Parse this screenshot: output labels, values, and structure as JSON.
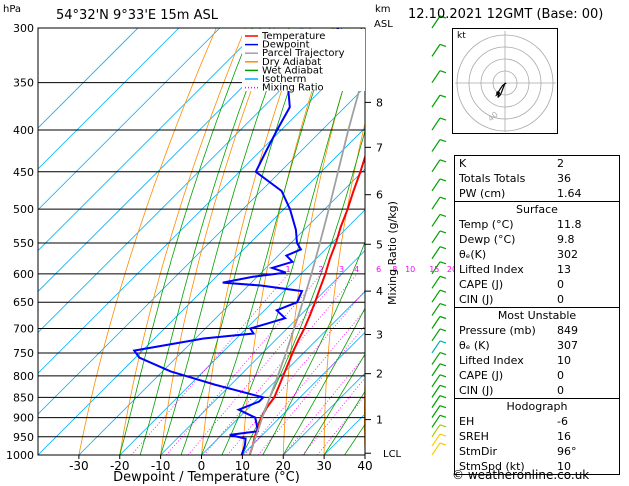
{
  "header": {
    "location": "54°32'N  9°33'E  15m  ASL",
    "pressure_unit": "hPa",
    "km_unit": "km",
    "asl_unit": "ASL",
    "datetime": "12.10.2021  12GMT  (Base: 00)"
  },
  "legend": {
    "items": [
      {
        "label": "Temperature",
        "color": "#ff0000",
        "style": "solid"
      },
      {
        "label": "Dewpoint",
        "color": "#0000ff",
        "style": "solid"
      },
      {
        "label": "Parcel Trajectory",
        "color": "#a0a0a0",
        "style": "solid"
      },
      {
        "label": "Dry Adiabat",
        "color": "#ff8c00",
        "style": "solid"
      },
      {
        "label": "Wet Adiabat",
        "color": "#00a000",
        "style": "solid"
      },
      {
        "label": "Isotherm",
        "color": "#00b0ff",
        "style": "solid"
      },
      {
        "label": "Mixing Ratio",
        "color": "#ff00ff",
        "style": "dotted"
      }
    ]
  },
  "chart_data": {
    "type": "line",
    "xlabel": "Dewpoint / Temperature (°C)",
    "ylabel_right": "Mixing Ratio (g/kg)",
    "x_ticks": [
      -30,
      -20,
      -10,
      0,
      10,
      20,
      30,
      40
    ],
    "xlim": [
      -40,
      40
    ],
    "pressure_ticks": [
      300,
      350,
      400,
      450,
      500,
      550,
      600,
      650,
      700,
      750,
      800,
      850,
      900,
      950,
      1000
    ],
    "ylim_hpa": [
      1000,
      300
    ],
    "y_scale": "log",
    "km_ticks": [
      {
        "label": "8",
        "p": 370
      },
      {
        "label": "7",
        "p": 420
      },
      {
        "label": "6",
        "p": 480
      },
      {
        "label": "5",
        "p": 552
      },
      {
        "label": "4",
        "p": 630
      },
      {
        "label": "3",
        "p": 712
      },
      {
        "label": "2",
        "p": 795
      },
      {
        "label": "1",
        "p": 905
      }
    ],
    "lcl": {
      "label": "LCL",
      "p": 995
    },
    "mixing_ratio_labels": [
      "1",
      "2",
      "3",
      "4",
      "6",
      "8",
      "10",
      "15",
      "20",
      "25"
    ],
    "series": [
      {
        "name": "Temperature",
        "color": "#ff0000",
        "points": [
          [
            1000,
            11.8
          ],
          [
            975,
            10.3
          ],
          [
            950,
            8.6
          ],
          [
            925,
            7.0
          ],
          [
            900,
            5.5
          ],
          [
            875,
            4.4
          ],
          [
            850,
            3.7
          ],
          [
            825,
            2.2
          ],
          [
            800,
            0.6
          ],
          [
            775,
            -1.0
          ],
          [
            750,
            -2.7
          ],
          [
            725,
            -4.3
          ],
          [
            700,
            -5.8
          ],
          [
            675,
            -7.6
          ],
          [
            650,
            -9.6
          ],
          [
            625,
            -11.8
          ],
          [
            600,
            -14.0
          ],
          [
            575,
            -16.6
          ],
          [
            550,
            -19.0
          ],
          [
            525,
            -21.8
          ],
          [
            500,
            -24.4
          ],
          [
            475,
            -27.4
          ],
          [
            450,
            -30.4
          ],
          [
            425,
            -33.8
          ],
          [
            400,
            -37.2
          ],
          [
            375,
            -41.0
          ],
          [
            350,
            -44.6
          ],
          [
            325,
            -48.7
          ],
          [
            300,
            -53.0
          ]
        ]
      },
      {
        "name": "Dewpoint",
        "color": "#0000ff",
        "points": [
          [
            1000,
            9.8
          ],
          [
            975,
            8.4
          ],
          [
            955,
            6.8
          ],
          [
            945,
            2.0
          ],
          [
            935,
            8.0
          ],
          [
            900,
            4.0
          ],
          [
            880,
            -2.0
          ],
          [
            860,
            1.0
          ],
          [
            850,
            1.0
          ],
          [
            820,
            -14.0
          ],
          [
            790,
            -28.0
          ],
          [
            760,
            -39.0
          ],
          [
            745,
            -42.0
          ],
          [
            720,
            -28.0
          ],
          [
            710,
            -17.0
          ],
          [
            700,
            -19.0
          ],
          [
            690,
            -16.0
          ],
          [
            680,
            -13.0
          ],
          [
            665,
            -17.0
          ],
          [
            650,
            -14.0
          ],
          [
            630,
            -15.5
          ],
          [
            620,
            -27.0
          ],
          [
            615,
            -37.0
          ],
          [
            605,
            -31.0
          ],
          [
            598,
            -24.0
          ],
          [
            590,
            -28.5
          ],
          [
            580,
            -25.0
          ],
          [
            570,
            -28.0
          ],
          [
            560,
            -26.0
          ],
          [
            550,
            -28.5
          ],
          [
            530,
            -32.0
          ],
          [
            500,
            -38.5
          ],
          [
            475,
            -45.0
          ],
          [
            450,
            -56.0
          ],
          [
            425,
            -58.5
          ],
          [
            400,
            -61.0
          ],
          [
            375,
            -63.5
          ],
          [
            350,
            -70.0
          ],
          [
            325,
            -69.0
          ],
          [
            300,
            -71.0
          ]
        ]
      },
      {
        "name": "Parcel Trajectory",
        "color": "#a0a0a0",
        "points": [
          [
            1000,
            11.8
          ],
          [
            975,
            10.3
          ],
          [
            950,
            8.8
          ],
          [
            925,
            7.3
          ],
          [
            900,
            5.7
          ],
          [
            875,
            4.2
          ],
          [
            850,
            2.6
          ],
          [
            800,
            -0.7
          ],
          [
            750,
            -4.3
          ],
          [
            700,
            -8.3
          ],
          [
            650,
            -12.6
          ],
          [
            600,
            -17.4
          ],
          [
            550,
            -22.9
          ],
          [
            500,
            -29.0
          ],
          [
            450,
            -35.9
          ],
          [
            400,
            -43.6
          ],
          [
            350,
            -52.0
          ],
          [
            300,
            -61.0
          ]
        ]
      }
    ]
  },
  "hodograph": {
    "label": "kt",
    "ring_labels": [
      "40"
    ],
    "points": [
      [
        0,
        0
      ],
      [
        -3,
        -8
      ],
      [
        -4,
        -10
      ],
      [
        -6,
        -12
      ],
      [
        -5,
        -9
      ],
      [
        -7,
        -10
      ],
      [
        -4,
        -5
      ],
      [
        -2,
        -2
      ],
      [
        1,
        0
      ]
    ]
  },
  "indices": {
    "basic": [
      {
        "label": "K",
        "value": "2"
      },
      {
        "label": "Totals Totals",
        "value": "36"
      },
      {
        "label": "PW (cm)",
        "value": "1.64"
      }
    ],
    "surface_title": "Surface",
    "surface": [
      {
        "label": "Temp (°C)",
        "value": "11.8"
      },
      {
        "label": "Dewp (°C)",
        "value": "9.8"
      },
      {
        "label": "θₑ(K)",
        "value": "302"
      },
      {
        "label": "Lifted Index",
        "value": "13"
      },
      {
        "label": "CAPE (J)",
        "value": "0"
      },
      {
        "label": "CIN (J)",
        "value": "0"
      }
    ],
    "mu_title": "Most Unstable",
    "most_unstable": [
      {
        "label": "Pressure (mb)",
        "value": "849"
      },
      {
        "label": "θₑ (K)",
        "value": "307"
      },
      {
        "label": "Lifted Index",
        "value": "10"
      },
      {
        "label": "CAPE (J)",
        "value": "0"
      },
      {
        "label": "CIN (J)",
        "value": "0"
      }
    ],
    "hodo_title": "Hodograph",
    "hodo": [
      {
        "label": "EH",
        "value": "-6"
      },
      {
        "label": "SREH",
        "value": "16"
      },
      {
        "label": "StmDir",
        "value": "96°"
      },
      {
        "label": "StmSpd (kt)",
        "value": "10"
      }
    ]
  },
  "footer": "© weatheronline.co.uk"
}
